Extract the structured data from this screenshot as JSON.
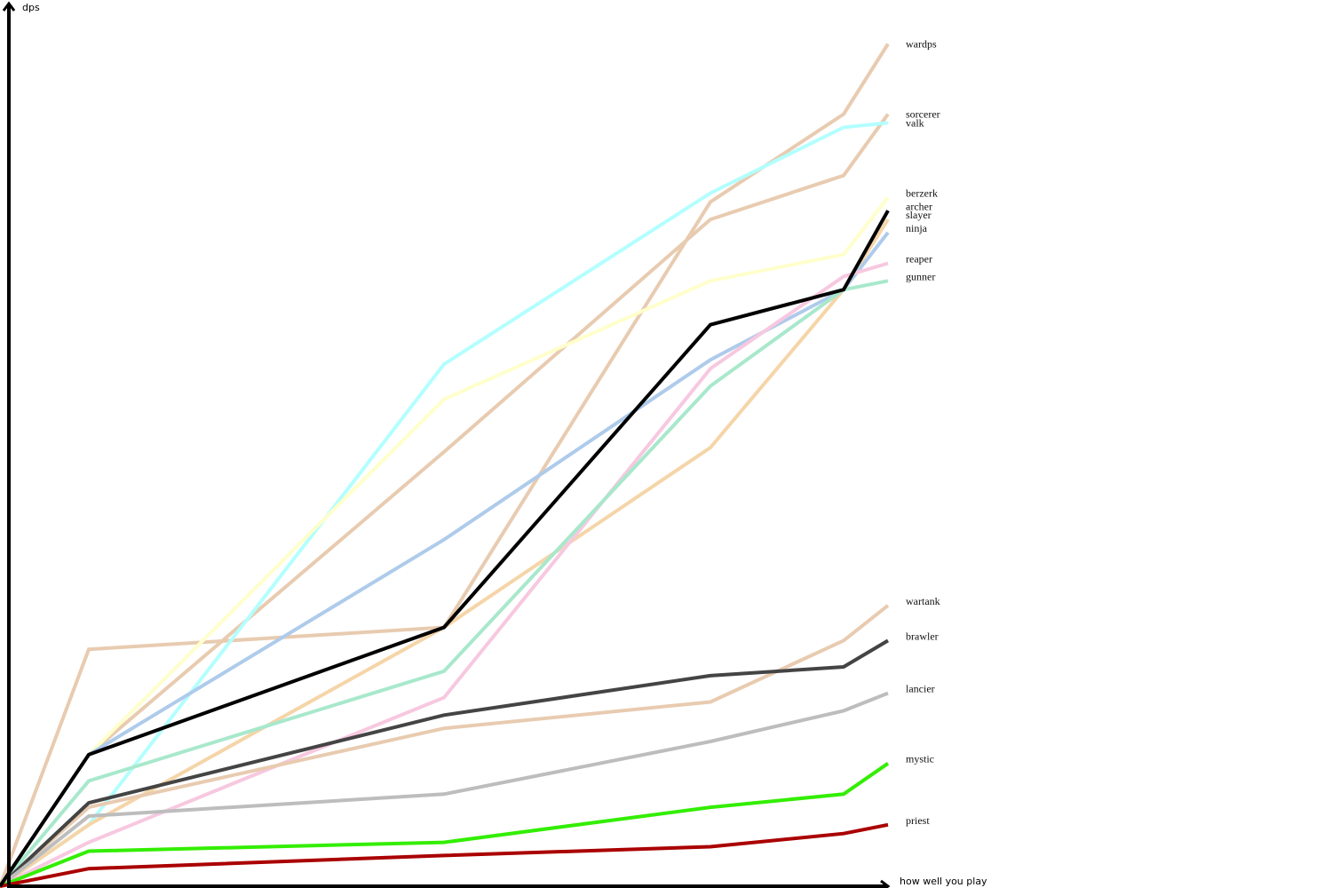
{
  "chart_data": {
    "type": "line",
    "title": "",
    "xlabel": "how well you play",
    "ylabel": "dps",
    "x": [
      0,
      1,
      5,
      8,
      9.5,
      10
    ],
    "xlim": [
      0,
      10
    ],
    "ylim": [
      0,
      100
    ],
    "grid": false,
    "legend": "right-end labels",
    "series": [
      {
        "name": "wardps",
        "values": [
          0,
          27,
          29.5,
          78,
          88,
          96
        ],
        "color": "#e8cbb0",
        "width": 4,
        "label_y": 96
      },
      {
        "name": "sorcerer",
        "values": [
          0,
          15,
          49.5,
          76,
          81,
          88
        ],
        "color": "#e8cbb0",
        "width": 4,
        "label_y": 88
      },
      {
        "name": "valk",
        "values": [
          0,
          7,
          59.5,
          79,
          86.5,
          87
        ],
        "color": "#b3ffff",
        "width": 4,
        "label_y": 87
      },
      {
        "name": "berzerk",
        "values": [
          0,
          15,
          55.5,
          69,
          72,
          78.5
        ],
        "color": "#ffffcc",
        "width": 4,
        "label_y": 79
      },
      {
        "name": "archer",
        "values": [
          0,
          15,
          29.5,
          64,
          68,
          77
        ],
        "color": "#000000",
        "width": 4,
        "label_y": 77.5
      },
      {
        "name": "slayer",
        "values": [
          0,
          7,
          29.5,
          50,
          68,
          76
        ],
        "color": "#f5d5a8",
        "width": 4,
        "label_y": 76.5
      },
      {
        "name": "ninja",
        "values": [
          0,
          15,
          39.5,
          60,
          68,
          74.5
        ],
        "color": "#aecbeb",
        "width": 4,
        "label_y": 75
      },
      {
        "name": "reaper",
        "values": [
          0,
          5,
          21.5,
          59,
          69.5,
          71
        ],
        "color": "#f7c8e0",
        "width": 4,
        "label_y": 71.5
      },
      {
        "name": "gunner",
        "values": [
          0,
          12,
          24.5,
          57,
          68,
          69
        ],
        "color": "#a8e8cc",
        "width": 4,
        "label_y": 69.5
      },
      {
        "name": "wartank",
        "values": [
          0,
          9,
          18,
          21,
          28,
          32
        ],
        "color": "#e8cbb0",
        "width": 4,
        "label_y": 32.5
      },
      {
        "name": "brawler",
        "values": [
          0,
          9.5,
          19.5,
          24,
          25,
          28
        ],
        "color": "#444444",
        "width": 4,
        "label_y": 28.5
      },
      {
        "name": "lancier",
        "values": [
          0,
          8,
          10.5,
          16.5,
          20,
          22
        ],
        "color": "#bdbdbd",
        "width": 4,
        "label_y": 22.5
      },
      {
        "name": "mystic",
        "values": [
          0,
          4,
          5,
          9,
          10.5,
          14
        ],
        "color": "#33ee00",
        "width": 4,
        "label_y": 14.5
      },
      {
        "name": "priest",
        "values": [
          0,
          2,
          3.5,
          4.5,
          6,
          7
        ],
        "color": "#aa0000",
        "width": 4,
        "label_y": 7.5
      }
    ]
  }
}
